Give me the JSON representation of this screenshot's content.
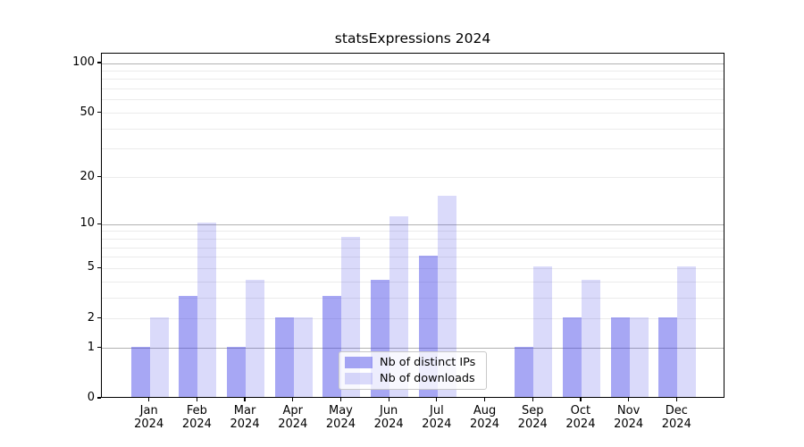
{
  "title": "statsExpressions 2024",
  "legend": {
    "items": [
      {
        "label": "Nb of distinct IPs",
        "color": "rgba(60,60,230,0.45)"
      },
      {
        "label": "Nb of downloads",
        "color": "rgba(60,60,230,0.19)"
      }
    ]
  },
  "chart_data": {
    "type": "bar",
    "title": "statsExpressions 2024",
    "categories": [
      "Jan 2024",
      "Feb 2024",
      "Mar 2024",
      "Apr 2024",
      "May 2024",
      "Jun 2024",
      "Jul 2024",
      "Aug 2024",
      "Sep 2024",
      "Oct 2024",
      "Nov 2024",
      "Dec 2024"
    ],
    "x_tick_lines": [
      [
        "Jan",
        "2024"
      ],
      [
        "Feb",
        "2024"
      ],
      [
        "Mar",
        "2024"
      ],
      [
        "Apr",
        "2024"
      ],
      [
        "May",
        "2024"
      ],
      [
        "Jun",
        "2024"
      ],
      [
        "Jul",
        "2024"
      ],
      [
        "Aug",
        "2024"
      ],
      [
        "Sep",
        "2024"
      ],
      [
        "Oct",
        "2024"
      ],
      [
        "Nov",
        "2024"
      ],
      [
        "Dec",
        "2024"
      ]
    ],
    "series": [
      {
        "name": "Nb of distinct IPs",
        "values": [
          1,
          3,
          1,
          2,
          3,
          4,
          6,
          0,
          1,
          2,
          2,
          2
        ],
        "color": "rgba(60,60,230,0.45)"
      },
      {
        "name": "Nb of downloads",
        "values": [
          2,
          10,
          4,
          2,
          8,
          11,
          15,
          0,
          5,
          4,
          2,
          5
        ],
        "color": "rgba(60,60,230,0.19)"
      }
    ],
    "yscale": "log1p",
    "ylim": [
      0,
      114.6
    ],
    "xlabel": "",
    "ylabel": "",
    "grid": true,
    "legend_position": "lower center inside",
    "y_ticks": [
      0,
      1,
      2,
      5,
      10,
      20,
      50,
      100
    ],
    "y_tick_labels": [
      "0",
      "1",
      "2",
      "5",
      "10",
      "20",
      "50",
      "100"
    ],
    "y_major_gridlines": [
      1,
      10,
      100
    ],
    "y_minor_gridlines": [
      2,
      3,
      4,
      5,
      6,
      7,
      8,
      9,
      20,
      30,
      40,
      50,
      60,
      70,
      80,
      90
    ],
    "grid_colors": {
      "major": "#b2b2b2",
      "minor": "#ebebeb"
    }
  }
}
